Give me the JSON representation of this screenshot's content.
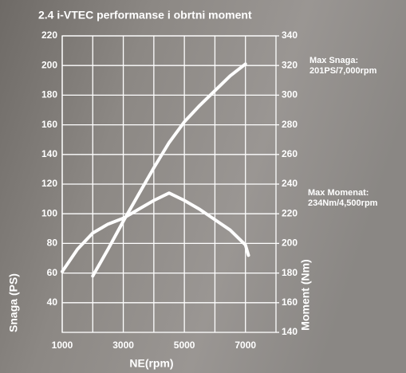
{
  "chart_data": {
    "type": "line",
    "title": "2.4 i-VTEC performanse i obrtni moment",
    "xlabel": "NE(rpm)",
    "ylabel": "Snaga  (PS)",
    "y2label": "Moment (Nm)",
    "xlim": [
      1000,
      8000
    ],
    "xticks": [
      1000,
      3000,
      5000,
      7000
    ],
    "ylim": [
      20,
      220
    ],
    "yticks": [
      40,
      60,
      80,
      100,
      120,
      140,
      160,
      180,
      200,
      220
    ],
    "y2lim": [
      140,
      340
    ],
    "y2ticks": [
      140,
      160,
      180,
      200,
      220,
      240,
      260,
      280,
      300,
      320,
      340
    ],
    "grid": true,
    "series": [
      {
        "name": "Snaga",
        "color": "#ffffff",
        "axis": "y",
        "x": [
          2000,
          2500,
          3000,
          3500,
          4000,
          4500,
          5000,
          5500,
          6000,
          6500,
          7000
        ],
        "values": [
          58,
          76,
          95,
          113,
          131,
          148,
          162,
          173,
          183,
          193,
          201
        ]
      },
      {
        "name": "Moment",
        "color": "#ffffff",
        "axis": "y2",
        "x": [
          1000,
          1500,
          2000,
          2500,
          3000,
          3500,
          4000,
          4500,
          5000,
          5500,
          6000,
          6500,
          7000,
          7100
        ],
        "values": [
          181,
          196,
          207,
          213,
          217,
          223,
          229,
          234,
          229,
          223,
          216,
          209,
          199,
          192
        ]
      }
    ],
    "annotations": [
      "Max Snaga:",
      "201PS/7,000rpm",
      "Max Momenat:",
      "234Nm/4,500rpm"
    ]
  }
}
